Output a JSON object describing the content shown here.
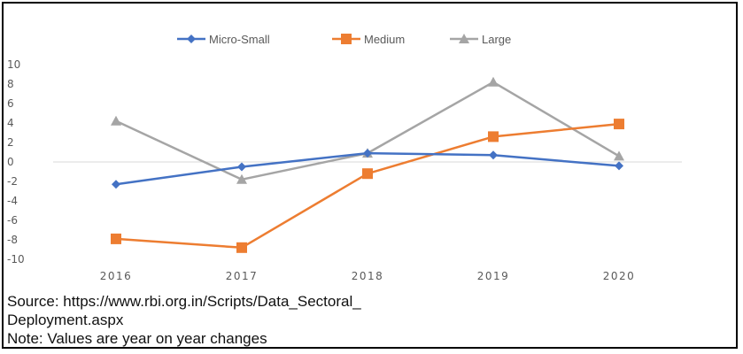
{
  "chart_data": {
    "type": "line",
    "categories": [
      "2016",
      "2017",
      "2018",
      "2019",
      "2020"
    ],
    "series": [
      {
        "name": "Micro-Small",
        "values": [
          -2.3,
          -0.5,
          0.9,
          0.7,
          -0.4
        ],
        "color": "#4472C4",
        "marker": "diamond"
      },
      {
        "name": "Medium",
        "values": [
          -7.9,
          -8.8,
          -1.2,
          2.6,
          3.9
        ],
        "color": "#ED7D31",
        "marker": "square"
      },
      {
        "name": "Large",
        "values": [
          4.2,
          -1.8,
          0.9,
          8.2,
          0.6
        ],
        "color": "#A5A5A5",
        "marker": "triangle"
      }
    ],
    "ylim": [
      -10,
      10
    ],
    "yticks": [
      "10",
      "8",
      "6",
      "4",
      "2",
      "0",
      "-2",
      "-4",
      "-6",
      "-8",
      "-10"
    ],
    "legend": "top",
    "grid": false
  },
  "notes": {
    "source_line1": "Source: https://www.rbi.org.in/Scripts/Data_Sectoral_",
    "source_line2": "Deployment.aspx",
    "note": "Note: Values are year on year changes"
  }
}
